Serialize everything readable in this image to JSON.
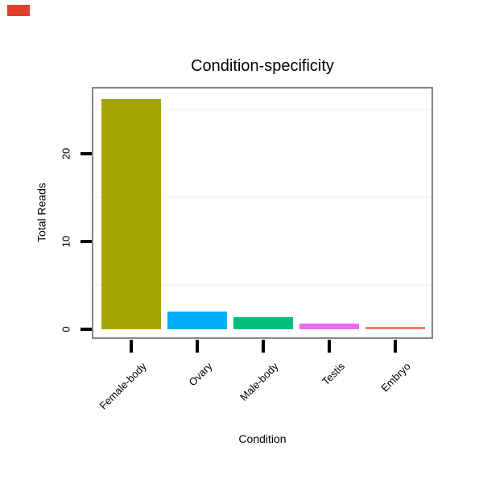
{
  "red_marker": {
    "color": "#e0402c"
  },
  "chart_data": {
    "type": "bar",
    "title": "Condition-specificity",
    "xlabel": "Condition",
    "ylabel": "Total Reads",
    "categories": [
      "Female-body",
      "Ovary",
      "Male-body",
      "Testis",
      "Embryo"
    ],
    "values": [
      26.2,
      2.0,
      1.4,
      0.6,
      0.25
    ],
    "bar_colors": [
      "#A3A500",
      "#00B0F6",
      "#00BF7D",
      "#E76BF3",
      "#F8766D"
    ],
    "yticks": [
      0,
      10,
      20
    ],
    "ylim": [
      0,
      27.4
    ],
    "minor_gridlines": [
      5,
      15,
      25
    ],
    "grid": "minor-horizontal-only",
    "legend": "none",
    "panel_border_color": "#868686",
    "minor_grid_color": "#f5f5f5",
    "tick_color": "#000000",
    "text_color": "#000000"
  }
}
